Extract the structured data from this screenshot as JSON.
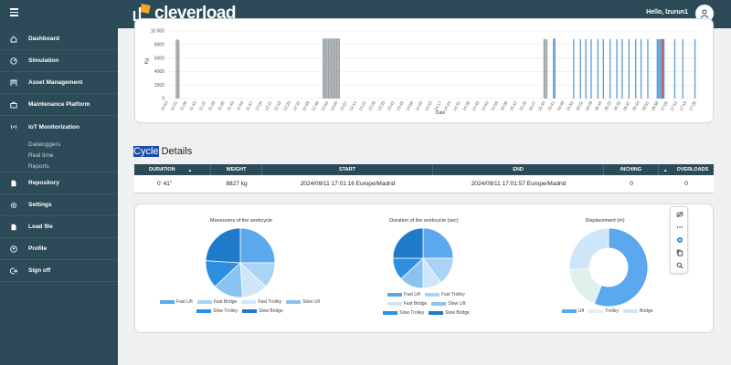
{
  "header": {
    "brand": "cleverload",
    "greeting": "Hello, lzurun1"
  },
  "sidebar": {
    "items": [
      {
        "label": "Dashboard",
        "icon": "home-icon"
      },
      {
        "label": "Simulation",
        "icon": "gauge-icon"
      },
      {
        "label": "Asset Management",
        "icon": "crane-icon"
      },
      {
        "label": "Maintenance Platform",
        "icon": "toolbox-icon"
      },
      {
        "label": "IoT Monitorization",
        "icon": "signal-icon"
      },
      {
        "label": "Repository",
        "icon": "document-icon"
      },
      {
        "label": "Settings",
        "icon": "gear-icon"
      },
      {
        "label": "Load file",
        "icon": "file-icon"
      },
      {
        "label": "Profile",
        "icon": "user-circle-icon"
      },
      {
        "label": "Sign off",
        "icon": "logout-icon"
      }
    ],
    "subitems": [
      "Dataloggers",
      "Real time",
      "Reports"
    ]
  },
  "top_chart": {
    "ylabel": "Kg",
    "xlabel": "Date",
    "yticks": [
      "10 000",
      "8000",
      "6000",
      "4000",
      "2000",
      "0"
    ],
    "xticks": [
      "10:54",
      "11:01",
      "11:08",
      "11:15",
      "11:22",
      "11:29",
      "11:36",
      "11:43",
      "11:50",
      "11:57",
      "12:04",
      "12:11",
      "12:18",
      "12:25",
      "12:32",
      "12:39",
      "12:46",
      "12:53",
      "13:00",
      "13:07",
      "13:14",
      "13:21",
      "13:28",
      "13:35",
      "13:42",
      "13:49",
      "13:56",
      "14:03",
      "14:10",
      "14:17",
      "14:24",
      "14:31",
      "14:38",
      "14:45",
      "14:52",
      "14:59",
      "15:06",
      "15:13",
      "15:20",
      "15:27",
      "15:34",
      "15:41",
      "15:48",
      "15:55",
      "16:02",
      "16:09",
      "16:16",
      "16:23",
      "16:30",
      "16:37",
      "16:44",
      "16:51",
      "16:58",
      "17:05",
      "17:12",
      "17:19",
      "17:26"
    ]
  },
  "cycle": {
    "title_highlight": "Cycle",
    "title_rest": " Details",
    "columns": [
      "DURATION",
      "▲",
      "WEIGHT",
      "START",
      "END",
      "INCHING",
      "OVERLOADS",
      "▲"
    ],
    "row": {
      "duration": "0' 41\"",
      "weight": "8827 kg",
      "start": "2024/09/11 17:01:16 Europe/Madrid",
      "end": "2024/09/11 17:01:57 Europe/Madrid",
      "inching": "0",
      "overloads": "0"
    }
  },
  "colors": {
    "accent": "#2c4a58",
    "highlight": "#1a4da6",
    "bar_blue": "#5b9bd5",
    "bar_gray": "#9aa3a8",
    "bar_red": "#c0392b"
  },
  "chart_data": [
    {
      "type": "bar",
      "ylabel": "Kg",
      "xlabel": "Date",
      "ylim": [
        0,
        10000
      ],
      "series": [
        {
          "values": [
            {
              "x": "11:00",
              "y": 8700
            },
            {
              "x": "11:01",
              "y": 8800
            },
            {
              "x": "11:02",
              "y": 8600
            },
            {
              "x": "12:49",
              "y": 8900
            },
            {
              "x": "12:50",
              "y": 8900
            },
            {
              "x": "12:51",
              "y": 8900
            },
            {
              "x": "12:52",
              "y": 8900
            },
            {
              "x": "12:53",
              "y": 8900
            },
            {
              "x": "12:54",
              "y": 8900
            },
            {
              "x": "12:55",
              "y": 8900
            },
            {
              "x": "12:56",
              "y": 8900
            },
            {
              "x": "12:57",
              "y": 8900
            },
            {
              "x": "12:58",
              "y": 8900
            },
            {
              "x": "12:59",
              "y": 8900
            },
            {
              "x": "13:00",
              "y": 8900
            },
            {
              "x": "13:01",
              "y": 8900
            },
            {
              "x": "15:33",
              "y": 8800
            },
            {
              "x": "15:34",
              "y": 8800
            },
            {
              "x": "15:35",
              "y": 8800
            },
            {
              "x": "15:40",
              "y": 8900
            },
            {
              "x": "15:41",
              "y": 8900
            },
            {
              "x": "15:55",
              "y": 8800
            },
            {
              "x": "16:00",
              "y": 8800
            },
            {
              "x": "16:04",
              "y": 8800
            },
            {
              "x": "16:08",
              "y": 8800
            },
            {
              "x": "16:13",
              "y": 8800
            },
            {
              "x": "16:17",
              "y": 8800
            },
            {
              "x": "16:22",
              "y": 8800
            },
            {
              "x": "16:27",
              "y": 8800
            },
            {
              "x": "16:31",
              "y": 8800
            },
            {
              "x": "16:36",
              "y": 8800
            },
            {
              "x": "16:41",
              "y": 8800
            },
            {
              "x": "16:45",
              "y": 8800
            },
            {
              "x": "16:50",
              "y": 8800
            },
            {
              "x": "16:57",
              "y": 8800
            },
            {
              "x": "16:58",
              "y": 8800
            },
            {
              "x": "16:59",
              "y": 8800
            },
            {
              "x": "17:00",
              "y": 8800
            },
            {
              "x": "17:01",
              "y": 8827
            },
            {
              "x": "17:02",
              "y": 8800
            },
            {
              "x": "17:10",
              "y": 8800
            },
            {
              "x": "17:16",
              "y": 8800
            },
            {
              "x": "17:25",
              "y": 8800
            }
          ]
        }
      ]
    },
    {
      "type": "pie",
      "title": "Maneuvers of the workcycle",
      "categories": [
        "Fast Lift",
        "Fast Bridge",
        "Fast Trolley",
        "Slow Lift",
        "Slow Trolley",
        "Slow Bridge"
      ],
      "values": [
        25,
        12,
        12,
        14,
        13,
        24
      ],
      "colors": [
        "#5ba8ee",
        "#a9d4f7",
        "#cfe6fa",
        "#88c3f2",
        "#2e8fe0",
        "#1f7ac9"
      ]
    },
    {
      "type": "pie",
      "title": "Duration of the workcycle (sec)",
      "categories": [
        "Fast Lift",
        "Fast Trolley",
        "Fast Bridge",
        "Slow Lift",
        "Slow Trolley",
        "Slow Bridge"
      ],
      "values": [
        25,
        15,
        10,
        13,
        12,
        25
      ],
      "colors": [
        "#5ba8ee",
        "#a9d4f7",
        "#cfe6fa",
        "#88c3f2",
        "#2e8fe0",
        "#1f7ac9"
      ]
    },
    {
      "type": "pie",
      "title": "Displacement (m)",
      "categories": [
        "Lift",
        "Trolley",
        "Bridge"
      ],
      "values": [
        56,
        18,
        26
      ],
      "colors": [
        "#5ba8ee",
        "#e0f0ec",
        "#cfe6fa"
      ],
      "donut": true
    }
  ]
}
